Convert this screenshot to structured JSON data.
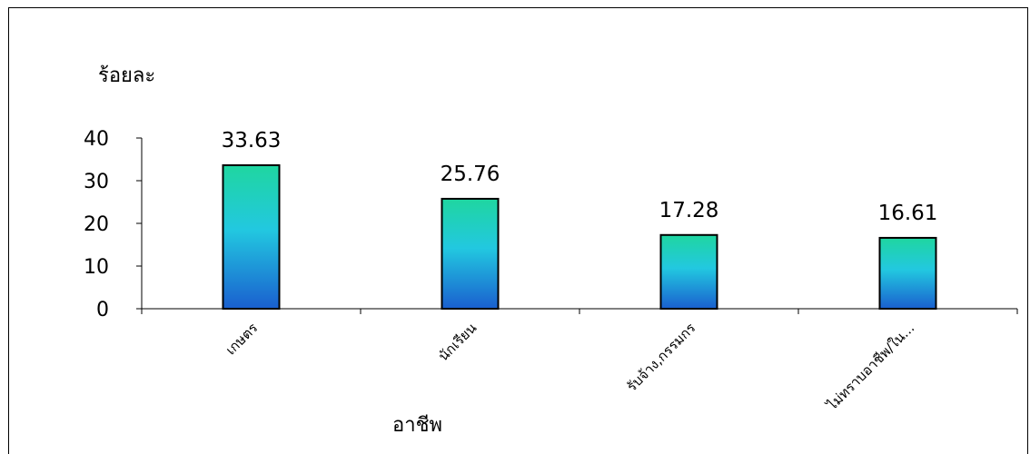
{
  "chart_data": {
    "type": "bar",
    "ylabel": "ร้อยละ",
    "xlabel": "อาชีพ",
    "categories": [
      "เกษตร",
      "นักเรียน",
      "รับจ้าง,กรรมกร",
      "ไม่ทราบอาชีพ/ใน..."
    ],
    "values": [
      33.63,
      25.76,
      17.28,
      16.61
    ],
    "value_labels": [
      "33.63",
      "25.76",
      "17.28",
      "16.61"
    ],
    "ylim": [
      0,
      40
    ],
    "yticks": [
      "0",
      "10",
      "20",
      "30",
      "40"
    ],
    "grid": false,
    "legend": "none",
    "colors": {
      "bar_top": "#1fd6a0",
      "bar_mid": "#22c8e0",
      "bar_bottom": "#1a5fcf",
      "bar_border": "#000000"
    }
  }
}
